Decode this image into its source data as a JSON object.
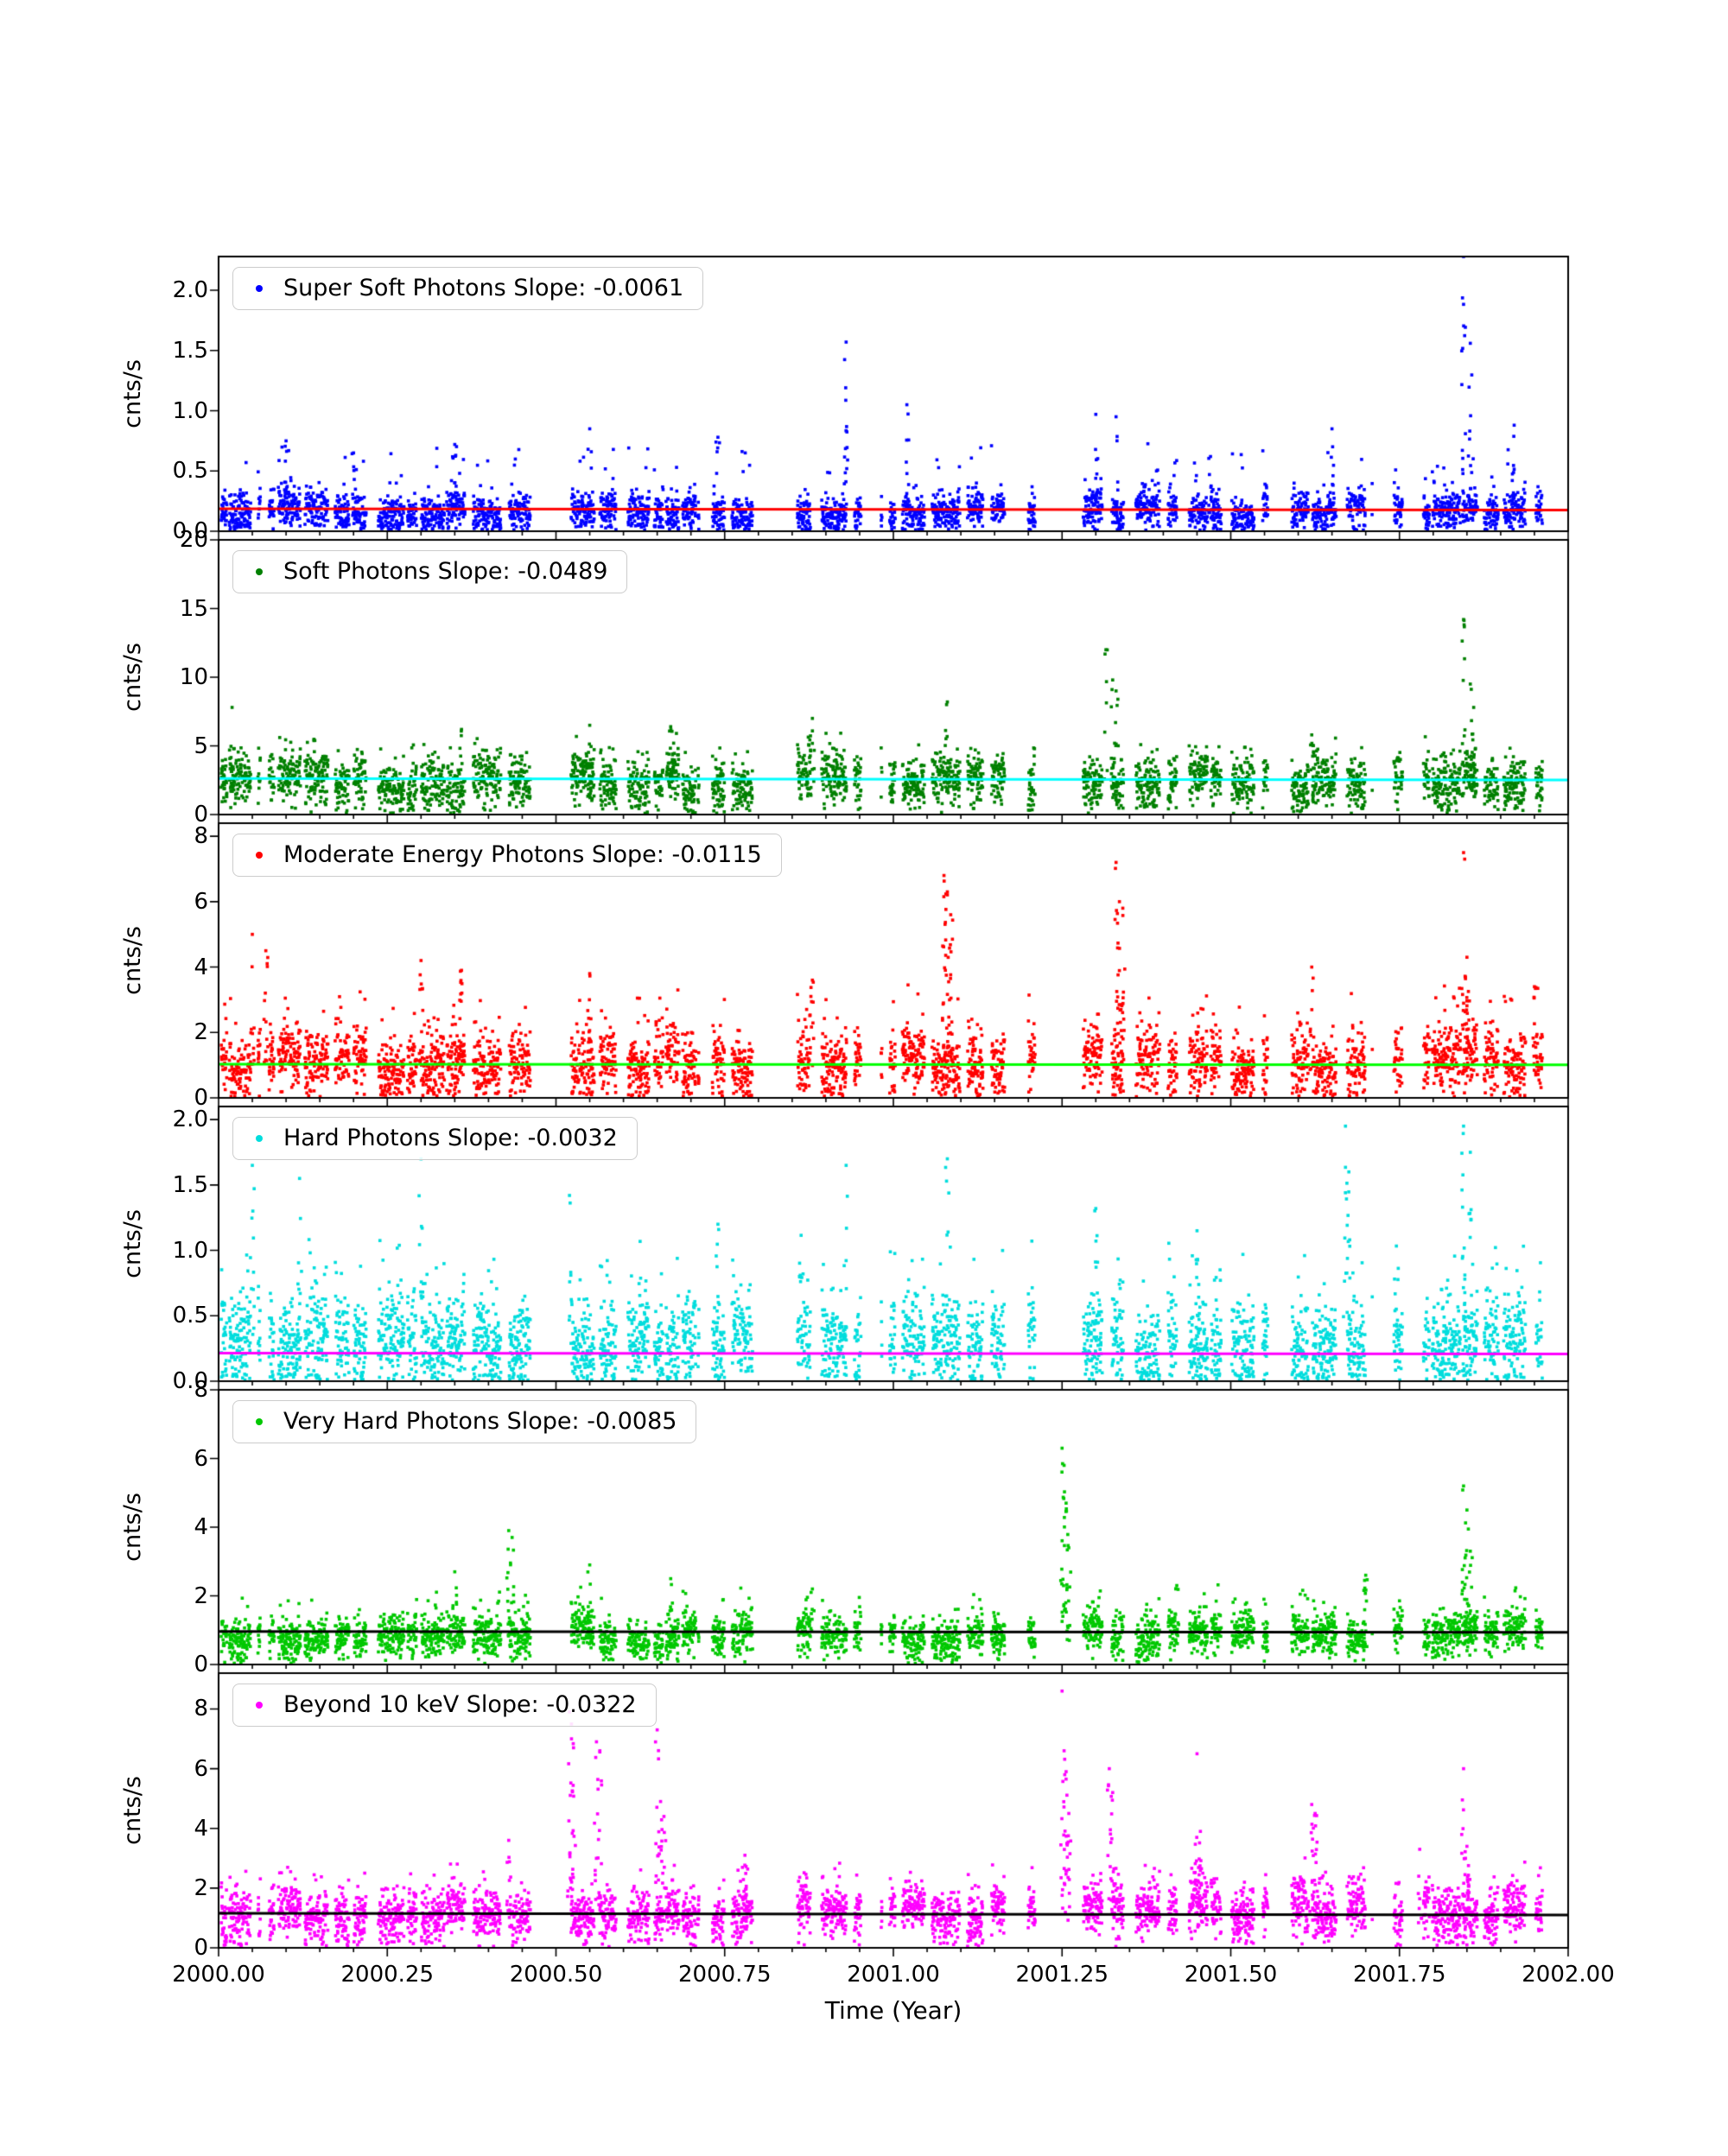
{
  "figure": {
    "background": "#ffffff"
  },
  "chart_data": {
    "type": "scatter",
    "title": "",
    "xlabel": "Time (Year)",
    "xlim": [
      2000.0,
      2002.0
    ],
    "x_major_ticks": [
      {
        "v": 2000.0,
        "label": "2000.00"
      },
      {
        "v": 2000.25,
        "label": "2000.25"
      },
      {
        "v": 2000.5,
        "label": "2000.50"
      },
      {
        "v": 2000.75,
        "label": "2000.75"
      },
      {
        "v": 2001.0,
        "label": "2001.00"
      },
      {
        "v": 2001.25,
        "label": "2001.25"
      },
      {
        "v": 2001.5,
        "label": "2001.50"
      },
      {
        "v": 2001.75,
        "label": "2001.75"
      },
      {
        "v": 2002.0,
        "label": "2002.00"
      }
    ],
    "x_minor_step": 0.05,
    "grid": false,
    "legend_position": "upper-left-inside",
    "sampling": {
      "seed": 7,
      "step": 0.00045,
      "big_gaps": [
        [
          2000.062,
          2000.075
        ],
        [
          2000.462,
          2000.502
        ],
        [
          2000.712,
          2000.732
        ],
        [
          2000.838,
          2000.858
        ],
        [
          2000.952,
          2000.982
        ],
        [
          2001.165,
          2001.2
        ],
        [
          2001.21,
          2001.235
        ],
        [
          2001.555,
          2001.59
        ],
        [
          2001.71,
          2001.742
        ],
        [
          2001.962,
          2001.99
        ]
      ]
    },
    "panels": [
      {
        "name": "super-soft-photons",
        "legend_label": "Super Soft Photons Slope: -0.0061",
        "slope": -0.0061,
        "ylabel": "cnts/s",
        "point_color": "#0000ff",
        "trend_color": "#ff0000",
        "trend": {
          "start": 0.187,
          "end": 0.175
        },
        "ylim": [
          0,
          2.28
        ],
        "yticks": [
          {
            "v": 0.0,
            "label": "0.0"
          },
          {
            "v": 0.5,
            "label": "0.5"
          },
          {
            "v": 1.0,
            "label": "1.0"
          },
          {
            "v": 1.5,
            "label": "1.5"
          },
          {
            "v": 2.0,
            "label": "2.0"
          }
        ],
        "baseline": {
          "base": 0.16,
          "noise": 0.08,
          "tail_p": 0.035,
          "tail_max": 0.55
        },
        "seed": 11,
        "spikes": [
          [
            2000.1,
            0.75
          ],
          [
            2000.2,
            0.65
          ],
          [
            2000.35,
            0.72
          ],
          [
            2000.55,
            0.85
          ],
          [
            2000.74,
            0.78
          ],
          [
            2000.93,
            1.57
          ],
          [
            2001.02,
            1.05
          ],
          [
            2001.3,
            0.97
          ],
          [
            2001.33,
            0.95
          ],
          [
            2001.47,
            0.62
          ],
          [
            2001.65,
            0.85
          ],
          [
            2001.845,
            2.28
          ],
          [
            2001.855,
            1.56
          ],
          [
            2001.92,
            0.88
          ]
        ]
      },
      {
        "name": "soft-photons",
        "legend_label": "Soft Photons Slope: -0.0489",
        "slope": -0.0489,
        "ylabel": "cnts/s",
        "point_color": "#008000",
        "trend_color": "#00ffff",
        "trend": {
          "start": 2.62,
          "end": 2.52
        },
        "ylim": [
          0,
          20
        ],
        "yticks": [
          {
            "v": 0,
            "label": "0"
          },
          {
            "v": 5,
            "label": "5"
          },
          {
            "v": 10,
            "label": "10"
          },
          {
            "v": 15,
            "label": "15"
          },
          {
            "v": 20,
            "label": "20"
          }
        ],
        "baseline": {
          "base": 2.4,
          "noise": 0.95,
          "tail_p": 0.04,
          "tail_max": 3.2
        },
        "seed": 22,
        "spikes": [
          [
            2000.02,
            7.8
          ],
          [
            2000.36,
            6.2
          ],
          [
            2000.55,
            6.5
          ],
          [
            2000.67,
            6.4
          ],
          [
            2000.88,
            7.0
          ],
          [
            2001.08,
            8.2
          ],
          [
            2001.315,
            12.0
          ],
          [
            2001.325,
            9.8
          ],
          [
            2001.33,
            9.0
          ],
          [
            2001.62,
            5.8
          ],
          [
            2001.845,
            14.2
          ],
          [
            2001.855,
            9.5
          ],
          [
            2001.86,
            7.8
          ]
        ]
      },
      {
        "name": "moderate-energy-photons",
        "legend_label": "Moderate Energy Photons Slope: -0.0115",
        "slope": -0.0115,
        "ylabel": "cnts/s",
        "point_color": "#ff0000",
        "trend_color": "#00ff00",
        "trend": {
          "start": 1.03,
          "end": 1.01
        },
        "ylim": [
          0,
          8.4
        ],
        "yticks": [
          {
            "v": 0,
            "label": "0"
          },
          {
            "v": 2,
            "label": "2"
          },
          {
            "v": 4,
            "label": "4"
          },
          {
            "v": 6,
            "label": "6"
          },
          {
            "v": 8,
            "label": "8"
          }
        ],
        "baseline": {
          "base": 1.1,
          "noise": 0.5,
          "tail_p": 0.05,
          "tail_max": 2.2
        },
        "seed": 33,
        "spikes": [
          [
            2000.05,
            5.0
          ],
          [
            2000.07,
            4.5
          ],
          [
            2000.3,
            4.2
          ],
          [
            2000.36,
            3.9
          ],
          [
            2000.55,
            3.8
          ],
          [
            2000.88,
            3.6
          ],
          [
            2001.075,
            6.8
          ],
          [
            2001.08,
            6.3
          ],
          [
            2001.085,
            5.6
          ],
          [
            2001.33,
            7.2
          ],
          [
            2001.335,
            6.0
          ],
          [
            2001.34,
            5.8
          ],
          [
            2001.62,
            4.0
          ],
          [
            2001.845,
            7.5
          ],
          [
            2001.85,
            4.3
          ],
          [
            2001.95,
            3.4
          ]
        ]
      },
      {
        "name": "hard-photons",
        "legend_label": "Hard Photons Slope: -0.0032",
        "slope": -0.0032,
        "ylabel": "cnts/s",
        "point_color": "#00dddd",
        "trend_color": "#ff00ff",
        "trend": {
          "start": 0.215,
          "end": 0.208
        },
        "ylim": [
          0,
          2.1
        ],
        "yticks": [
          {
            "v": 0.0,
            "label": "0.0"
          },
          {
            "v": 0.5,
            "label": "0.5"
          },
          {
            "v": 1.0,
            "label": "1.0"
          },
          {
            "v": 1.5,
            "label": "1.5"
          },
          {
            "v": 2.0,
            "label": "2.0"
          }
        ],
        "baseline": {
          "base": 0.3,
          "noise": 0.17,
          "tail_p": 0.05,
          "tail_max": 0.75
        },
        "seed": 44,
        "spikes": [
          [
            2000.05,
            1.65
          ],
          [
            2000.12,
            1.55
          ],
          [
            2000.3,
            1.7
          ],
          [
            2000.52,
            1.42
          ],
          [
            2000.74,
            1.2
          ],
          [
            2000.93,
            1.65
          ],
          [
            2001.08,
            1.7
          ],
          [
            2001.3,
            1.32
          ],
          [
            2001.45,
            1.15
          ],
          [
            2001.67,
            1.95
          ],
          [
            2001.675,
            1.6
          ],
          [
            2001.845,
            1.95
          ],
          [
            2001.855,
            1.75
          ]
        ]
      },
      {
        "name": "very-hard-photons",
        "legend_label": "Very Hard Photons Slope: -0.0085",
        "slope": -0.0085,
        "ylabel": "cnts/s",
        "point_color": "#00c800",
        "trend_color": "#000000",
        "trend": {
          "start": 0.96,
          "end": 0.94
        },
        "ylim": [
          0,
          8
        ],
        "yticks": [
          {
            "v": 0,
            "label": "0"
          },
          {
            "v": 2,
            "label": "2"
          },
          {
            "v": 4,
            "label": "4"
          },
          {
            "v": 6,
            "label": "6"
          },
          {
            "v": 8,
            "label": "8"
          }
        ],
        "baseline": {
          "base": 0.85,
          "noise": 0.3,
          "tail_p": 0.035,
          "tail_max": 1.3
        },
        "seed": 55,
        "spikes": [
          [
            2000.35,
            2.7
          ],
          [
            2000.43,
            3.9
          ],
          [
            2000.435,
            3.7
          ],
          [
            2000.55,
            2.9
          ],
          [
            2000.67,
            2.5
          ],
          [
            2000.88,
            2.2
          ],
          [
            2001.25,
            6.3
          ],
          [
            2001.253,
            5.8
          ],
          [
            2001.256,
            4.7
          ],
          [
            2001.26,
            3.4
          ],
          [
            2001.42,
            2.3
          ],
          [
            2001.7,
            2.6
          ],
          [
            2001.845,
            5.2
          ],
          [
            2001.85,
            4.5
          ],
          [
            2001.855,
            3.3
          ]
        ]
      },
      {
        "name": "beyond-10-kev",
        "legend_label": "Beyond 10 keV Slope: -0.0322",
        "slope": -0.0322,
        "ylabel": "cnts/s",
        "point_color": "#ff00ff",
        "trend_color": "#000000",
        "trend": {
          "start": 1.16,
          "end": 1.1
        },
        "ylim": [
          0,
          9.2
        ],
        "yticks": [
          {
            "v": 0,
            "label": "0"
          },
          {
            "v": 2,
            "label": "2"
          },
          {
            "v": 4,
            "label": "4"
          },
          {
            "v": 6,
            "label": "6"
          },
          {
            "v": 8,
            "label": "8"
          }
        ],
        "baseline": {
          "base": 1.15,
          "noise": 0.45,
          "tail_p": 0.05,
          "tail_max": 1.6
        },
        "seed": 66,
        "spikes": [
          [
            2000.43,
            3.6
          ],
          [
            2000.52,
            7.9
          ],
          [
            2000.523,
            7.0
          ],
          [
            2000.526,
            6.7
          ],
          [
            2000.56,
            6.9
          ],
          [
            2000.565,
            6.6
          ],
          [
            2000.65,
            7.3
          ],
          [
            2000.655,
            4.9
          ],
          [
            2000.66,
            4.4
          ],
          [
            2000.78,
            3.1
          ],
          [
            2001.25,
            8.6
          ],
          [
            2001.253,
            6.6
          ],
          [
            2001.256,
            5.9
          ],
          [
            2001.26,
            4.5
          ],
          [
            2001.32,
            6.0
          ],
          [
            2001.325,
            5.2
          ],
          [
            2001.45,
            6.5
          ],
          [
            2001.455,
            3.9
          ],
          [
            2001.62,
            4.8
          ],
          [
            2001.625,
            4.5
          ],
          [
            2001.78,
            3.3
          ],
          [
            2001.845,
            6.0
          ],
          [
            2001.85,
            3.4
          ]
        ]
      }
    ]
  }
}
